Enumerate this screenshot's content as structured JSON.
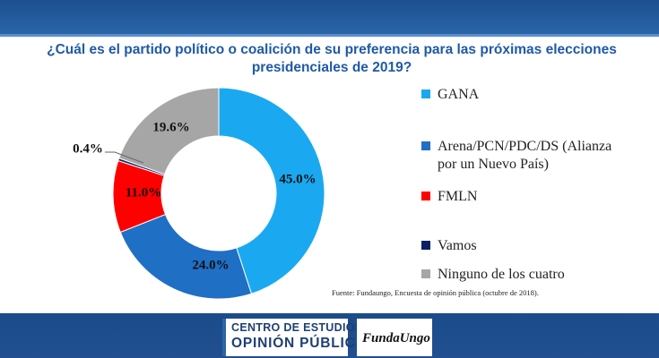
{
  "header": {
    "title_line1": "¿Cuál es el partido político o coalición de su preferencia para las próximas elecciones",
    "title_line2": "presidenciales de 2019?"
  },
  "chart_data": {
    "type": "pie",
    "donut": true,
    "title": "¿Cuál es el partido político o coalición de su preferencia para las próximas elecciones presidenciales de 2019?",
    "categories": [
      "GANA",
      "Arena/PCN/PDC/DS (Alianza por un Nuevo País)",
      "FMLN",
      "Vamos",
      "Ninguno de los cuatro"
    ],
    "values": [
      45.0,
      24.0,
      11.0,
      0.4,
      19.6
    ],
    "labels": [
      "45.0%",
      "24.0%",
      "11.0%",
      "0.4%",
      "19.6%"
    ],
    "colors": [
      "#1aa9f0",
      "#1f6fc5",
      "#ff0000",
      "#0a1f66",
      "#a6a6a6"
    ],
    "legend_position": "right"
  },
  "legend": {
    "items": [
      {
        "label_line1": "GANA",
        "label_line2": "",
        "color": "#1aa9f0"
      },
      {
        "label_line1": "Arena/PCN/PDC/DS (Alianza",
        "label_line2": "por un Nuevo País)",
        "color": "#1f6fc5"
      },
      {
        "label_line1": "FMLN",
        "label_line2": "",
        "color": "#ff0000"
      },
      {
        "label_line1": "Vamos",
        "label_line2": "",
        "color": "#0a1f66"
      },
      {
        "label_line1": "Ninguno de los cuatro",
        "label_line2": "",
        "color": "#a6a6a6"
      }
    ]
  },
  "footnote": "Fuente: Fundaungo, Encuesta de opinión pública (octubre de 2018).",
  "footer": {
    "logo_line1": "CENTRO DE ESTUDIOS DE",
    "logo_line2": "OPINIÓN PÚBLICA",
    "logo2": "FundaUngo"
  }
}
